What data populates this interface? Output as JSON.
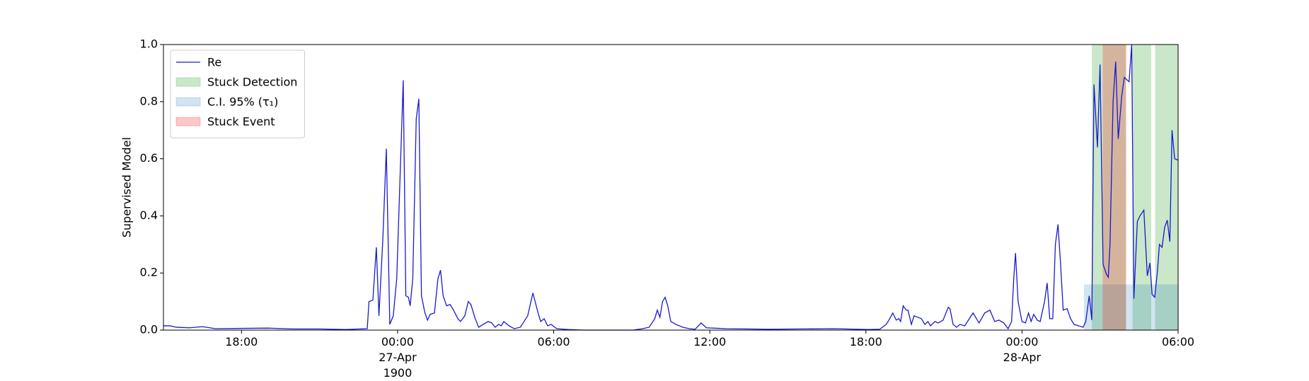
{
  "chart_data": {
    "type": "line",
    "ylabel": "Supervised Model",
    "xlim": [
      "1900-04-26 15:00",
      "1900-04-28 06:00"
    ],
    "xticks": [
      {
        "value": "1900-04-26 18:00",
        "label": "18:00"
      },
      {
        "value": "1900-04-27 00:00",
        "label": "00:00\n27-Apr\n1900"
      },
      {
        "value": "1900-04-27 06:00",
        "label": "06:00"
      },
      {
        "value": "1900-04-27 12:00",
        "label": "12:00"
      },
      {
        "value": "1900-04-27 18:00",
        "label": "18:00"
      },
      {
        "value": "1900-04-28 00:00",
        "label": "00:00\n28-Apr"
      },
      {
        "value": "1900-04-28 06:00",
        "label": "06:00"
      }
    ],
    "ylim": [
      0,
      1
    ],
    "yticks": [
      {
        "value": 0,
        "label": "0.0"
      },
      0.2,
      0.4,
      0.6,
      0.8,
      {
        "value": 1,
        "label": "1.0"
      }
    ],
    "legend": "upper left",
    "series": [
      {
        "name": "Re",
        "color": "#1a1acc",
        "x": [
          "1900-04-26 15:00",
          "1900-04-26 15:15",
          "1900-04-26 15:30",
          "1900-04-26 16:00",
          "1900-04-26 16:30",
          "1900-04-26 17:00",
          "1900-04-26 18:00",
          "1900-04-26 19:00",
          "1900-04-26 20:00",
          "1900-04-26 21:00",
          "1900-04-26 22:00",
          "1900-04-26 22:50",
          "1900-04-26 22:54",
          "1900-04-26 23:03",
          "1900-04-26 23:11",
          "1900-04-26 23:17",
          "1900-04-26 23:26",
          "1900-04-26 23:34",
          "1900-04-26 23:42",
          "1900-04-26 23:50",
          "1900-04-26 23:58",
          "1900-04-27 00:13",
          "1900-04-27 00:19",
          "1900-04-27 00:25",
          "1900-04-27 00:29",
          "1900-04-27 00:35",
          "1900-04-27 00:43",
          "1900-04-27 00:49",
          "1900-04-27 00:55",
          "1900-04-27 01:03",
          "1900-04-27 01:09",
          "1900-04-27 01:15",
          "1900-04-27 01:25",
          "1900-04-27 01:33",
          "1900-04-27 01:39",
          "1900-04-27 01:45",
          "1900-04-27 01:53",
          "1900-04-27 02:01",
          "1900-04-27 02:09",
          "1900-04-27 02:19",
          "1900-04-27 02:25",
          "1900-04-27 02:35",
          "1900-04-27 02:43",
          "1900-04-27 02:49",
          "1900-04-27 02:59",
          "1900-04-27 03:07",
          "1900-04-27 03:17",
          "1900-04-27 03:29",
          "1900-04-27 03:37",
          "1900-04-27 03:45",
          "1900-04-27 03:53",
          "1900-04-27 03:59",
          "1900-04-27 04:05",
          "1900-04-27 04:17",
          "1900-04-27 04:29",
          "1900-04-27 04:43",
          "1900-04-27 05:00",
          "1900-04-27 05:12",
          "1900-04-27 05:24",
          "1900-04-27 05:30",
          "1900-04-27 05:38",
          "1900-04-27 05:46",
          "1900-04-27 05:54",
          "1900-04-27 06:07",
          "1900-04-27 06:33",
          "1900-04-27 07:10",
          "1900-04-27 08:26",
          "1900-04-27 09:03",
          "1900-04-27 09:25",
          "1900-04-27 09:40",
          "1900-04-27 09:53",
          "1900-04-27 09:59",
          "1900-04-27 10:05",
          "1900-04-27 10:11",
          "1900-04-27 10:17",
          "1900-04-27 10:23",
          "1900-04-27 10:30",
          "1900-04-27 10:42",
          "1900-04-27 10:58",
          "1900-04-27 11:13",
          "1900-04-27 11:26",
          "1900-04-27 11:40",
          "1900-04-27 11:52",
          "1900-04-27 12:38",
          "1900-04-27 14:15",
          "1900-04-27 15:32",
          "1900-04-27 16:47",
          "1900-04-27 18:05",
          "1900-04-27 18:32",
          "1900-04-27 18:38",
          "1900-04-27 18:47",
          "1900-04-27 18:55",
          "1900-04-27 19:02",
          "1900-04-27 19:10",
          "1900-04-27 19:16",
          "1900-04-27 19:20",
          "1900-04-27 19:26",
          "1900-04-27 19:33",
          "1900-04-27 19:37",
          "1900-04-27 19:45",
          "1900-04-27 19:51",
          "1900-04-27 20:00",
          "1900-04-27 20:08",
          "1900-04-27 20:16",
          "1900-04-27 20:23",
          "1900-04-27 20:29",
          "1900-04-27 20:39",
          "1900-04-27 20:47",
          "1900-04-27 20:58",
          "1900-04-27 21:10",
          "1900-04-27 21:14",
          "1900-04-27 21:21",
          "1900-04-27 21:29",
          "1900-04-27 21:37",
          "1900-04-27 21:48",
          "1900-04-27 22:07",
          "1900-04-27 22:15",
          "1900-04-27 22:21",
          "1900-04-27 22:34",
          "1900-04-27 22:46",
          "1900-04-27 22:57",
          "1900-04-27 23:07",
          "1900-04-27 23:18",
          "1900-04-27 23:28",
          "1900-04-27 23:36",
          "1900-04-27 23:41",
          "1900-04-27 23:45",
          "1900-04-27 23:51",
          "1900-04-28 00:00",
          "1900-04-28 00:08",
          "1900-04-28 00:15",
          "1900-04-28 00:21",
          "1900-04-28 00:27",
          "1900-04-28 00:35",
          "1900-04-28 00:42",
          "1900-04-28 00:52",
          "1900-04-28 00:58",
          "1900-04-28 01:04",
          "1900-04-28 01:11",
          "1900-04-28 01:17",
          "1900-04-28 01:23",
          "1900-04-28 01:29",
          "1900-04-28 01:35",
          "1900-04-28 01:44",
          "1900-04-28 01:52",
          "1900-04-28 02:00",
          "1900-04-28 02:11",
          "1900-04-28 02:21",
          "1900-04-28 02:27",
          "1900-04-28 02:35",
          "1900-04-28 02:41",
          "1900-04-28 02:46",
          "1900-04-28 02:54",
          "1900-04-28 03:00",
          "1900-04-28 03:07",
          "1900-04-28 03:15",
          "1900-04-28 03:19",
          "1900-04-28 03:23",
          "1900-04-28 03:30",
          "1900-04-28 03:36",
          "1900-04-28 03:42",
          "1900-04-28 03:50",
          "1900-04-28 03:56",
          "1900-04-28 04:03",
          "1900-04-28 04:07",
          "1900-04-28 04:13",
          "1900-04-28 04:18",
          "1900-04-28 04:26",
          "1900-04-28 04:32",
          "1900-04-28 04:41",
          "1900-04-28 04:49",
          "1900-04-28 04:55",
          "1900-04-28 05:00",
          "1900-04-28 05:06",
          "1900-04-28 05:12",
          "1900-04-28 05:17",
          "1900-04-28 05:23",
          "1900-04-28 05:29",
          "1900-04-28 05:35",
          "1900-04-28 05:41",
          "1900-04-28 05:46",
          "1900-04-28 05:52",
          "1900-04-28 06:00"
        ],
        "values": [
          0.015,
          0.015,
          0.01,
          0.008,
          0.012,
          0.005,
          0.006,
          0.007,
          0.004,
          0.004,
          0.002,
          0.005,
          0.1,
          0.105,
          0.29,
          0.05,
          0.32,
          0.635,
          0.02,
          0.05,
          0.18,
          0.875,
          0.12,
          0.115,
          0.085,
          0.18,
          0.74,
          0.81,
          0.12,
          0.06,
          0.035,
          0.055,
          0.06,
          0.18,
          0.21,
          0.12,
          0.085,
          0.09,
          0.07,
          0.04,
          0.03,
          0.05,
          0.1,
          0.09,
          0.04,
          0.01,
          0.02,
          0.03,
          0.025,
          0.01,
          0.02,
          0.015,
          0.03,
          0.015,
          0.005,
          0.01,
          0.05,
          0.13,
          0.06,
          0.03,
          0.04,
          0.015,
          0.02,
          0.005,
          0.002,
          0,
          0,
          0,
          0.005,
          0.01,
          0.04,
          0.07,
          0.045,
          0.1,
          0.115,
          0.085,
          0.03,
          0.02,
          0.01,
          0.005,
          0.003,
          0.025,
          0.008,
          0.005,
          0.003,
          0.004,
          0.005,
          0.002,
          0.003,
          0.01,
          0.02,
          0.04,
          0.06,
          0.035,
          0.04,
          0.03,
          0.085,
          0.07,
          0.07,
          0.02,
          0.05,
          0.045,
          0.04,
          0.02,
          0.03,
          0.015,
          0.03,
          0.025,
          0.035,
          0.08,
          0.075,
          0.02,
          0.01,
          0.02,
          0.015,
          0.06,
          0.04,
          0.025,
          0.06,
          0.07,
          0.03,
          0.035,
          0.025,
          0.005,
          0.03,
          0.18,
          0.27,
          0.1,
          0.03,
          0.025,
          0.06,
          0.03,
          0.055,
          0.035,
          0.03,
          0.1,
          0.165,
          0.04,
          0.04,
          0.3,
          0.37,
          0.23,
          0.07,
          0.075,
          0.04,
          0.02,
          0.015,
          0.01,
          0.03,
          0.12,
          0.035,
          0.86,
          0.64,
          0.93,
          0.23,
          0.195,
          0.185,
          0.3,
          0.8,
          0.94,
          0.67,
          0.82,
          0.885,
          0.875,
          0.87,
          1.0,
          0.11,
          0.38,
          0.4,
          0.42,
          0.19,
          0.235,
          0.125,
          0.115,
          0.2,
          0.3,
          0.29,
          0.36,
          0.385,
          0.31,
          0.7,
          0.6,
          0.595
        ]
      }
    ],
    "regions": [
      {
        "name": "Stuck Detection",
        "color": "#2ca02c",
        "alpha": 0.25,
        "spans": [
          [
            "1900-04-28 02:41",
            "1900-04-28 04:00"
          ],
          [
            "1900-04-28 04:15",
            "1900-04-28 04:58"
          ],
          [
            "1900-04-28 05:07",
            "1900-04-28 06:00"
          ]
        ]
      },
      {
        "name": "C.I. 95% (τ₁)",
        "color": "#1f77b4",
        "alpha": 0.2,
        "y": [
          0,
          0.16
        ],
        "spans": [
          [
            "1900-04-28 02:23",
            "1900-04-28 06:00"
          ]
        ]
      },
      {
        "name": "Stuck Event",
        "color": "#ff0000",
        "alpha": 0.22,
        "spans": [
          [
            "1900-04-28 03:06",
            "1900-04-28 04:00"
          ]
        ]
      }
    ]
  }
}
